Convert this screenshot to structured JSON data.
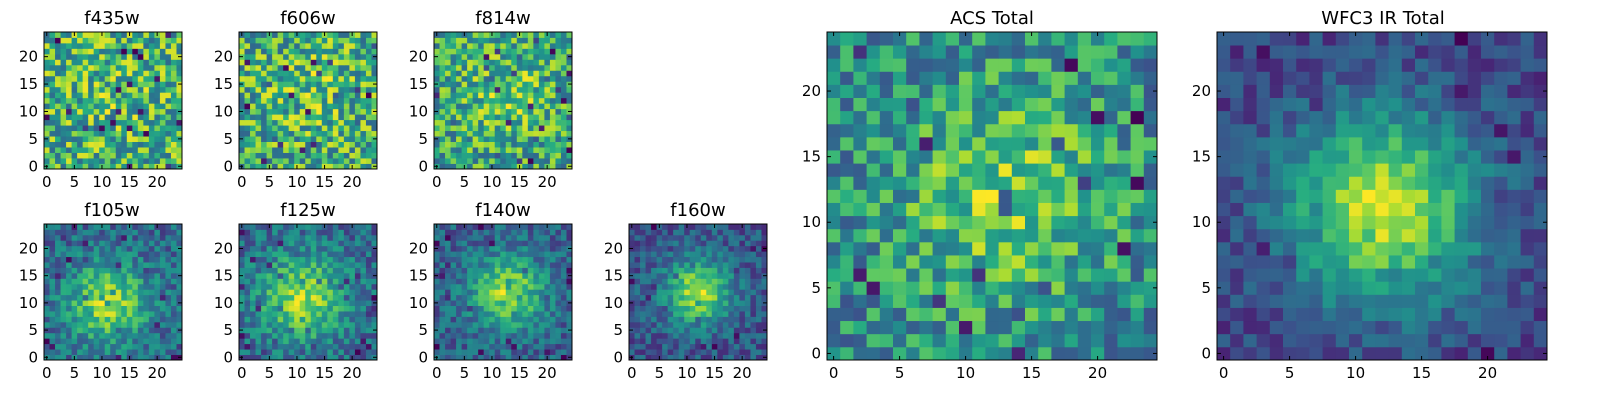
{
  "chart_data": [
    {
      "type": "heatmap",
      "title": "f435w",
      "xticks": [
        "0",
        "5",
        "10",
        "15",
        "20"
      ],
      "yticks": [
        "0",
        "5",
        "10",
        "15",
        "20"
      ],
      "xlim": [
        0,
        24
      ],
      "ylim": [
        0,
        24
      ],
      "grid_size": 25,
      "colormap": "viridis",
      "seed": 11,
      "signal": 0.1,
      "noise": 1.0,
      "center": [
        12,
        12
      ],
      "sigma": 6
    },
    {
      "type": "heatmap",
      "title": "f606w",
      "xticks": [
        "0",
        "5",
        "10",
        "15",
        "20"
      ],
      "yticks": [
        "0",
        "5",
        "10",
        "15",
        "20"
      ],
      "xlim": [
        0,
        24
      ],
      "ylim": [
        0,
        24
      ],
      "grid_size": 25,
      "colormap": "viridis",
      "seed": 23,
      "signal": 0.15,
      "noise": 1.0,
      "center": [
        13,
        14
      ],
      "sigma": 6
    },
    {
      "type": "heatmap",
      "title": "f814w",
      "xticks": [
        "0",
        "5",
        "10",
        "15",
        "20"
      ],
      "yticks": [
        "0",
        "5",
        "10",
        "15",
        "20"
      ],
      "xlim": [
        0,
        24
      ],
      "ylim": [
        0,
        24
      ],
      "grid_size": 25,
      "colormap": "viridis",
      "seed": 37,
      "signal": 0.25,
      "noise": 0.9,
      "center": [
        13,
        13
      ],
      "sigma": 6
    },
    {
      "type": "heatmap",
      "title": "f105w",
      "xticks": [
        "0",
        "5",
        "10",
        "15",
        "20"
      ],
      "yticks": [
        "0",
        "5",
        "10",
        "15",
        "20"
      ],
      "xlim": [
        0,
        24
      ],
      "ylim": [
        0,
        24
      ],
      "grid_size": 25,
      "colormap": "viridis",
      "seed": 41,
      "signal": 0.7,
      "noise": 0.45,
      "center": [
        11,
        10
      ],
      "sigma": 5
    },
    {
      "type": "heatmap",
      "title": "f125w",
      "xticks": [
        "0",
        "5",
        "10",
        "15",
        "20"
      ],
      "yticks": [
        "0",
        "5",
        "10",
        "15",
        "20"
      ],
      "xlim": [
        0,
        24
      ],
      "ylim": [
        0,
        24
      ],
      "grid_size": 25,
      "colormap": "viridis",
      "seed": 53,
      "signal": 0.7,
      "noise": 0.45,
      "center": [
        11,
        11
      ],
      "sigma": 5.5
    },
    {
      "type": "heatmap",
      "title": "f140w",
      "xticks": [
        "0",
        "5",
        "10",
        "15",
        "20"
      ],
      "yticks": [
        "0",
        "5",
        "10",
        "15",
        "20"
      ],
      "xlim": [
        0,
        24
      ],
      "ylim": [
        0,
        24
      ],
      "grid_size": 25,
      "colormap": "viridis",
      "seed": 67,
      "signal": 0.75,
      "noise": 0.4,
      "center": [
        13,
        12
      ],
      "sigma": 4.5
    },
    {
      "type": "heatmap",
      "title": "f160w",
      "xticks": [
        "0",
        "5",
        "10",
        "15",
        "20"
      ],
      "yticks": [
        "0",
        "5",
        "10",
        "15",
        "20"
      ],
      "xlim": [
        0,
        24
      ],
      "ylim": [
        0,
        24
      ],
      "grid_size": 25,
      "colormap": "viridis",
      "seed": 79,
      "signal": 0.8,
      "noise": 0.35,
      "center": [
        12,
        12
      ],
      "sigma": 4
    },
    {
      "type": "heatmap",
      "title": "ACS Total",
      "xticks": [
        "0",
        "5",
        "10",
        "15",
        "20"
      ],
      "yticks": [
        "0",
        "5",
        "10",
        "15",
        "20"
      ],
      "xlim": [
        0,
        24
      ],
      "ylim": [
        0,
        24
      ],
      "grid_size": 25,
      "colormap": "viridis",
      "seed": 97,
      "signal": 0.4,
      "noise": 0.6,
      "center": [
        13,
        12
      ],
      "sigma": 6
    },
    {
      "type": "heatmap",
      "title": "WFC3 IR Total",
      "xticks": [
        "0",
        "5",
        "10",
        "15",
        "20"
      ],
      "yticks": [
        "0",
        "5",
        "10",
        "15",
        "20"
      ],
      "xlim": [
        0,
        24
      ],
      "ylim": [
        0,
        24
      ],
      "grid_size": 25,
      "colormap": "viridis",
      "seed": 101,
      "signal": 0.85,
      "noise": 0.25,
      "center": [
        12,
        11
      ],
      "sigma": 5
    }
  ]
}
